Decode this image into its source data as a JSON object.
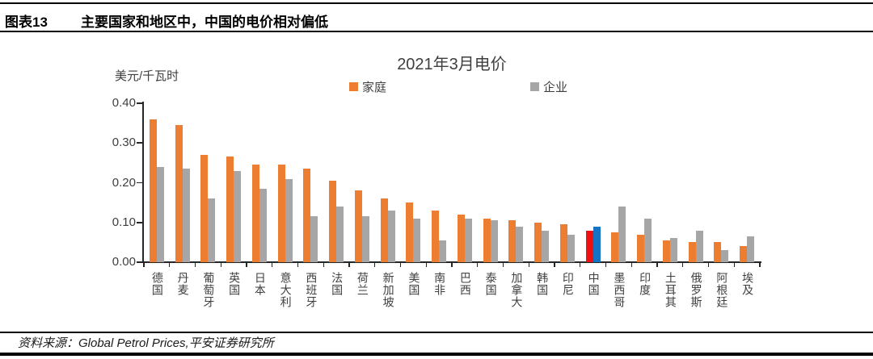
{
  "header": {
    "figure_label": "图表13",
    "title": "主要国家和地区中，中国的电价相对偏低"
  },
  "chart_data": {
    "type": "bar",
    "title": "2021年3月电价",
    "ylabel": "美元/千瓦时",
    "xlabel": "",
    "ylim": [
      0,
      0.4
    ],
    "ytick_labels": [
      "0.40",
      "0.30",
      "0.20",
      "0.10",
      "0.00"
    ],
    "grid": false,
    "legend_position": "top",
    "categories": [
      "德国",
      "丹麦",
      "葡萄牙",
      "英国",
      "日本",
      "意大利",
      "西班牙",
      "法国",
      "荷兰",
      "新加坡",
      "美国",
      "南非",
      "巴西",
      "泰国",
      "加拿大",
      "韩国",
      "印尼",
      "中国",
      "墨西哥",
      "印度",
      "土耳其",
      "俄罗斯",
      "阿根廷",
      "埃及"
    ],
    "series": [
      {
        "name": "家庭",
        "color": "#ED7D31",
        "values": [
          0.36,
          0.345,
          0.27,
          0.265,
          0.245,
          0.245,
          0.235,
          0.205,
          0.18,
          0.16,
          0.15,
          0.13,
          0.12,
          0.11,
          0.105,
          0.1,
          0.095,
          0.08,
          0.075,
          0.07,
          0.055,
          0.05,
          0.05,
          0.04
        ]
      },
      {
        "name": "企业",
        "color": "#A6A6A6",
        "values": [
          0.24,
          0.235,
          0.16,
          0.23,
          0.185,
          0.21,
          0.115,
          0.14,
          0.115,
          0.13,
          0.11,
          0.055,
          0.11,
          0.105,
          0.09,
          0.08,
          0.07,
          0.09,
          0.14,
          0.11,
          0.06,
          0.08,
          0.03,
          0.065
        ]
      }
    ],
    "highlight": {
      "category": "中国",
      "index": 17,
      "series_colors": [
        "#EE1111",
        "#1473C2"
      ]
    }
  },
  "footer": {
    "source": "资料来源：Global Petrol Prices,平安证券研究所"
  }
}
